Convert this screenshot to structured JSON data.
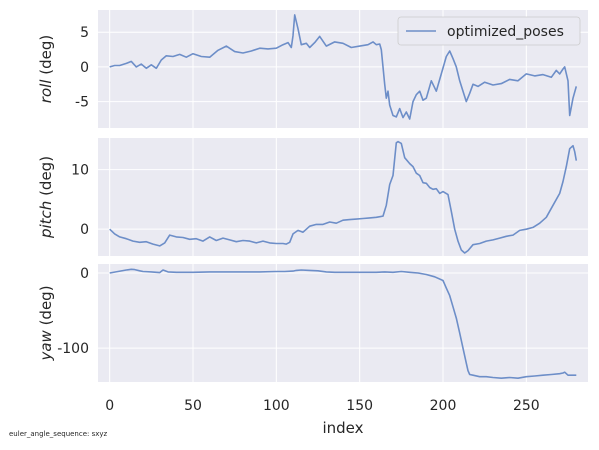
{
  "footnote": "euler_angle_sequence: sxyz",
  "colors": {
    "line": "#6d8ec8",
    "background": "#eaeaf2",
    "grid": "#ffffff",
    "text": "#262626"
  },
  "chart_data": {
    "type": "line",
    "xlabel": "index",
    "xlim": [
      -7,
      287
    ],
    "xticks": [
      0,
      50,
      100,
      150,
      200,
      250
    ],
    "grid": true,
    "legend": {
      "entries": [
        "optimized_poses"
      ],
      "location": "top-right"
    },
    "panels": [
      {
        "name": "roll",
        "ylabel_italic": "roll",
        "ylabel_unit": "(deg)",
        "ylim": [
          -8.8,
          8.2
        ],
        "yticks": [
          5,
          0,
          -5
        ],
        "series": [
          {
            "name": "optimized_poses",
            "x": [
              0,
              3,
              6,
              10,
              13,
              16,
              19,
              22,
              25,
              28,
              31,
              34,
              38,
              42,
              46,
              50,
              55,
              60,
              65,
              70,
              75,
              80,
              85,
              90,
              95,
              100,
              104,
              107,
              109,
              110,
              111,
              113,
              115,
              118,
              120,
              123,
              126,
              130,
              135,
              140,
              145,
              150,
              155,
              158,
              160,
              162,
              163,
              164,
              165,
              166,
              167,
              168,
              170,
              172,
              174,
              176,
              178,
              180,
              182,
              184,
              186,
              188,
              190,
              193,
              196,
              199,
              202,
              204,
              206,
              208,
              210,
              212,
              214,
              216,
              218,
              221,
              225,
              230,
              235,
              240,
              245,
              250,
              255,
              260,
              265,
              268,
              270,
              272,
              273,
              275,
              276,
              278,
              280
            ],
            "y": [
              0,
              0.2,
              0.2,
              0.5,
              0.8,
              0,
              0.4,
              -0.2,
              0.3,
              -0.2,
              1,
              1.6,
              1.5,
              1.8,
              1.4,
              1.9,
              1.5,
              1.4,
              2.4,
              3,
              2.2,
              2,
              2.3,
              2.7,
              2.6,
              2.7,
              3.2,
              3.5,
              2.8,
              4.5,
              7.5,
              5.5,
              3.2,
              3.4,
              2.8,
              3.5,
              4.4,
              3,
              3.6,
              3.4,
              2.8,
              3,
              3.2,
              3.6,
              3.2,
              3.3,
              2.5,
              0,
              -2.5,
              -4.5,
              -3.5,
              -5.5,
              -7,
              -7.2,
              -6,
              -7.3,
              -6.5,
              -7.5,
              -5,
              -4,
              -3.5,
              -4.8,
              -4.5,
              -2,
              -3.5,
              -1,
              1.5,
              2.3,
              1.2,
              0,
              -2,
              -3.5,
              -5,
              -3.8,
              -2.5,
              -2.8,
              -2.2,
              -2.6,
              -2.4,
              -1.8,
              -2,
              -1,
              -1.3,
              -1.1,
              -1.5,
              -0.5,
              -1,
              -0.3,
              0,
              -2,
              -7,
              -4.5,
              -2.8
            ]
          }
        ]
      },
      {
        "name": "pitch",
        "ylabel_italic": "pitch",
        "ylabel_unit": "(deg)",
        "ylim": [
          -4.5,
          15.3
        ],
        "yticks": [
          10,
          0
        ],
        "series": [
          {
            "name": "optimized_poses",
            "x": [
              0,
              3,
              6,
              10,
              14,
              18,
              22,
              26,
              30,
              33,
              36,
              40,
              44,
              48,
              52,
              56,
              60,
              64,
              68,
              72,
              76,
              80,
              84,
              88,
              92,
              96,
              100,
              104,
              106,
              108,
              110,
              113,
              116,
              120,
              124,
              128,
              132,
              136,
              140,
              144,
              148,
              152,
              156,
              160,
              164,
              166,
              168,
              170,
              172,
              173,
              175,
              177,
              180,
              182,
              184,
              186,
              188,
              190,
              192,
              194,
              196,
              198,
              200,
              203,
              205,
              207,
              209,
              211,
              213,
              215,
              218,
              222,
              226,
              230,
              234,
              238,
              242,
              246,
              250,
              254,
              258,
              262,
              266,
              270,
              272,
              274,
              276,
              278,
              279,
              280
            ],
            "y": [
              0,
              -0.8,
              -1.3,
              -1.6,
              -2,
              -2.2,
              -2.1,
              -2.5,
              -2.8,
              -2.3,
              -1,
              -1.3,
              -1.4,
              -1.7,
              -1.6,
              -2,
              -1.3,
              -1.9,
              -1.5,
              -1.8,
              -2.1,
              -1.9,
              -2,
              -2.3,
              -2,
              -2.3,
              -2.4,
              -2.4,
              -2.5,
              -2.2,
              -0.8,
              -0.2,
              -0.5,
              0.5,
              0.8,
              0.8,
              1.2,
              1,
              1.5,
              1.6,
              1.7,
              1.8,
              1.9,
              2,
              2.2,
              4,
              7.5,
              9,
              14.5,
              14.7,
              14.4,
              12,
              11,
              10.5,
              9.4,
              9,
              7.8,
              7.7,
              7,
              6.7,
              6.8,
              6,
              6.3,
              5.8,
              3,
              0,
              -2,
              -3.5,
              -4,
              -3.6,
              -2.6,
              -2.4,
              -2,
              -1.8,
              -1.5,
              -1.2,
              -1,
              -0.2,
              0,
              0.3,
              1,
              2,
              4,
              6,
              8,
              10.5,
              13.5,
              14,
              13,
              11.5
            ]
          }
        ]
      },
      {
        "name": "yaw",
        "ylabel_italic": "yaw",
        "ylabel_unit": "(deg)",
        "ylim": [
          -145,
          12
        ],
        "yticks": [
          0,
          -100
        ],
        "series": [
          {
            "name": "optimized_poses",
            "x": [
              0,
              5,
              10,
              13,
              15,
              18,
              20,
              25,
              30,
              32,
              35,
              40,
              50,
              60,
              70,
              80,
              90,
              100,
              105,
              110,
              112,
              115,
              120,
              125,
              130,
              135,
              140,
              150,
              160,
              165,
              170,
              175,
              180,
              185,
              190,
              195,
              200,
              202,
              204,
              206,
              208,
              210,
              212,
              214,
              215,
              216,
              218,
              222,
              226,
              230,
              235,
              240,
              245,
              250,
              255,
              260,
              265,
              270,
              272,
              273,
              275,
              280
            ],
            "y": [
              0,
              2,
              4,
              5,
              4.5,
              3,
              2,
              1.5,
              0.5,
              4,
              1.5,
              1,
              1,
              1.5,
              1.5,
              1.5,
              1.5,
              2,
              2,
              2.5,
              3.5,
              4,
              3.5,
              3,
              1.5,
              1,
              1,
              1,
              1,
              1.5,
              1,
              2,
              1,
              0,
              -2,
              -5,
              -10,
              -20,
              -30,
              -45,
              -60,
              -80,
              -100,
              -120,
              -130,
              -135,
              -136,
              -138,
              -138,
              -139,
              -140,
              -139,
              -140,
              -138,
              -137,
              -136,
              -135,
              -134,
              -133,
              -132,
              -136,
              -136
            ]
          }
        ]
      }
    ]
  }
}
